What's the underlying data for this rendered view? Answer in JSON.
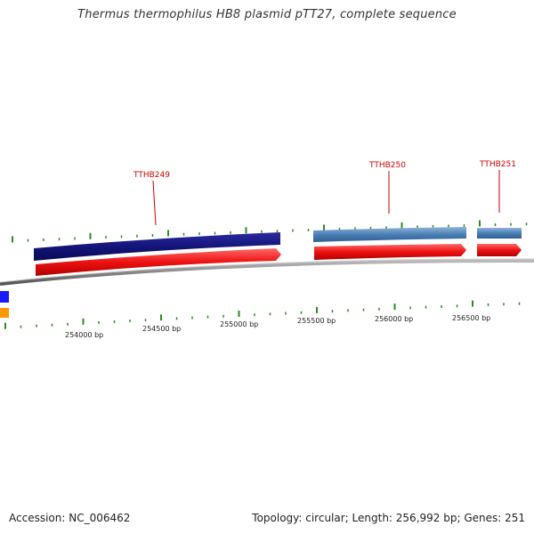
{
  "title": "Thermus thermophilus HB8 plasmid pTT27, complete sequence",
  "footer": {
    "accession": "Accession: NC_006462",
    "summary": "Topology: circular; Length: 256,992 bp; Genes: 251"
  },
  "colors": {
    "outer_strand_dark": "#14147a",
    "outer_strand_light": "#4a7fb5",
    "gene_arrow": "#ee1111",
    "backbone": "#888888",
    "ticks": "#2e8b22",
    "label": "#cc0000",
    "left_blue": "#1a1aff",
    "left_orange": "#ff9900"
  },
  "position_labels": [
    "254000 bp",
    "254500 bp",
    "255000 bp",
    "255500 bp",
    "256000 bp",
    "256500 bp"
  ],
  "genes": [
    {
      "name": "TTHB249"
    },
    {
      "name": "TTHB250"
    },
    {
      "name": "TTHB251"
    }
  ]
}
